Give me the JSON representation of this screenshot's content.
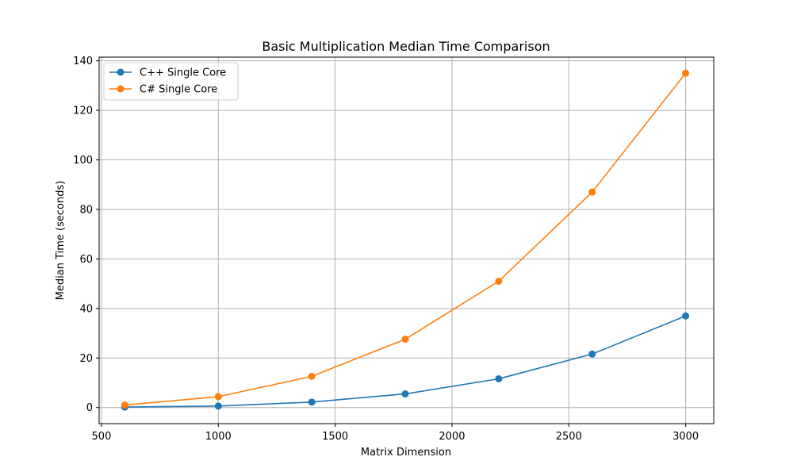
{
  "chart_data": {
    "type": "line",
    "title": "Basic Multiplication Median Time Comparison",
    "xlabel": "Matrix Dimension",
    "ylabel": "Median Time (seconds)",
    "xlim": [
      490,
      3120
    ],
    "ylim": [
      -6.5,
      141.5
    ],
    "xticks": [
      500,
      1000,
      1500,
      2000,
      2500,
      3000
    ],
    "yticks": [
      0,
      20,
      40,
      60,
      80,
      100,
      120,
      140
    ],
    "grid": true,
    "legend_position": "top-left",
    "x": [
      600,
      1000,
      1400,
      1800,
      2200,
      2600,
      3000
    ],
    "series": [
      {
        "name": "C++ Single Core",
        "color": "#1f77b4",
        "marker": "circle",
        "values": [
          0.2,
          0.6,
          2.2,
          5.5,
          11.6,
          21.6,
          37.0
        ]
      },
      {
        "name": "C# Single Core",
        "color": "#ff7f0e",
        "marker": "circle",
        "values": [
          1.0,
          4.4,
          12.6,
          27.6,
          51.0,
          87.0,
          135.0
        ]
      }
    ]
  }
}
